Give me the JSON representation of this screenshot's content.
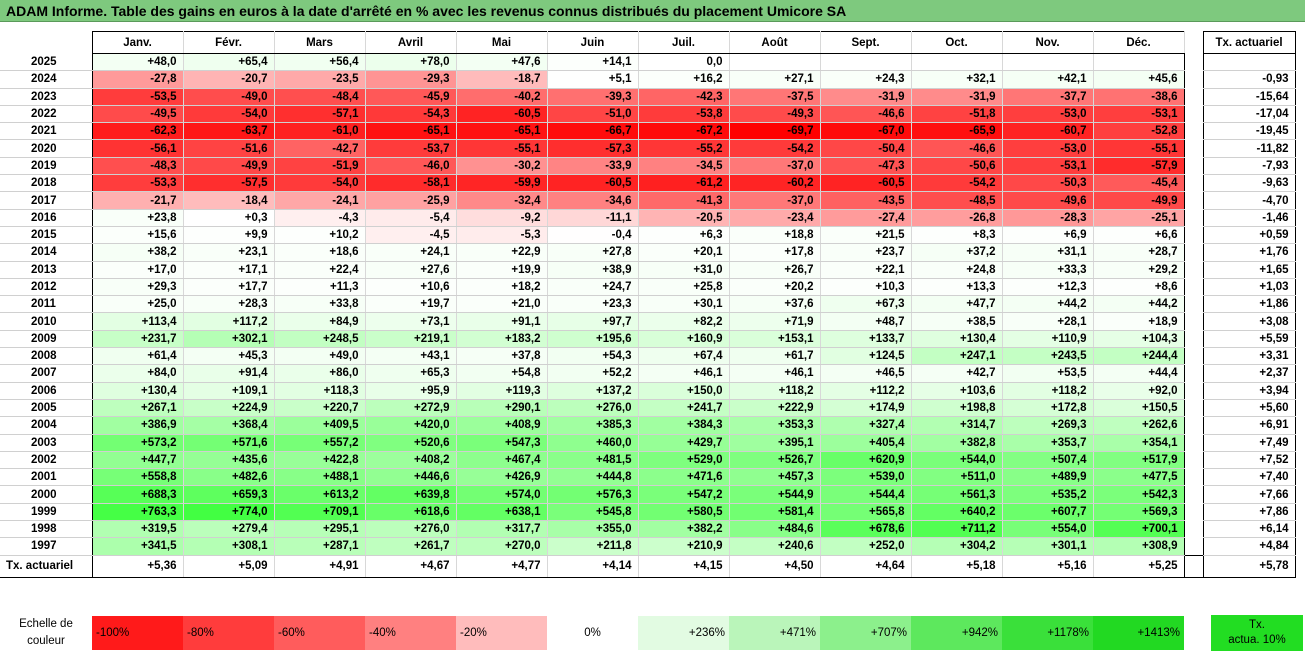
{
  "title": "ADAM Informe. Table des gains en euros à la date d'arrêté en % avec les revenus connus distribués du placement Umicore SA",
  "months": [
    "Janv.",
    "Févr.",
    "Mars",
    "Avril",
    "Mai",
    "Juin",
    "Juil.",
    "Août",
    "Sept.",
    "Oct.",
    "Nov.",
    "Déc."
  ],
  "tx_header": "Tx. actuariel",
  "rows": [
    {
      "year": "2025",
      "vals": [
        "+48,0",
        "+65,4",
        "+56,4",
        "+78,0",
        "+47,6",
        "+14,1",
        "0,0",
        "",
        "",
        "",
        "",
        ""
      ],
      "tx": ""
    },
    {
      "year": "2024",
      "vals": [
        "-27,8",
        "-20,7",
        "-23,5",
        "-29,3",
        "-18,7",
        "+5,1",
        "+16,2",
        "+27,1",
        "+24,3",
        "+32,1",
        "+42,1",
        "+45,6"
      ],
      "tx": "-0,93"
    },
    {
      "year": "2023",
      "vals": [
        "-53,5",
        "-49,0",
        "-48,4",
        "-45,9",
        "-40,2",
        "-39,3",
        "-42,3",
        "-37,5",
        "-31,9",
        "-31,9",
        "-37,7",
        "-38,6"
      ],
      "tx": "-15,64"
    },
    {
      "year": "2022",
      "vals": [
        "-49,5",
        "-54,0",
        "-57,1",
        "-54,3",
        "-60,5",
        "-51,0",
        "-53,8",
        "-49,3",
        "-46,6",
        "-51,8",
        "-53,0",
        "-53,1"
      ],
      "tx": "-17,04"
    },
    {
      "year": "2021",
      "vals": [
        "-62,3",
        "-63,7",
        "-61,0",
        "-65,1",
        "-65,1",
        "-66,7",
        "-67,2",
        "-69,7",
        "-67,0",
        "-65,9",
        "-60,7",
        "-52,8"
      ],
      "tx": "-19,45"
    },
    {
      "year": "2020",
      "vals": [
        "-56,1",
        "-51,6",
        "-42,7",
        "-53,7",
        "-55,1",
        "-57,3",
        "-55,2",
        "-54,2",
        "-50,4",
        "-46,6",
        "-53,0",
        "-55,1"
      ],
      "tx": "-11,82"
    },
    {
      "year": "2019",
      "vals": [
        "-48,3",
        "-49,9",
        "-51,9",
        "-46,0",
        "-30,2",
        "-33,9",
        "-34,5",
        "-37,0",
        "-47,3",
        "-50,6",
        "-53,1",
        "-57,9"
      ],
      "tx": "-7,93"
    },
    {
      "year": "2018",
      "vals": [
        "-53,3",
        "-57,5",
        "-54,0",
        "-58,1",
        "-59,9",
        "-60,5",
        "-61,2",
        "-60,2",
        "-60,5",
        "-54,2",
        "-50,3",
        "-45,4"
      ],
      "tx": "-9,63"
    },
    {
      "year": "2017",
      "vals": [
        "-21,7",
        "-18,4",
        "-24,1",
        "-25,9",
        "-32,4",
        "-34,6",
        "-41,3",
        "-37,0",
        "-43,5",
        "-48,5",
        "-49,6",
        "-49,9"
      ],
      "tx": "-4,70"
    },
    {
      "year": "2016",
      "vals": [
        "+23,8",
        "+0,3",
        "-4,3",
        "-5,4",
        "-9,2",
        "-11,1",
        "-20,5",
        "-23,4",
        "-27,4",
        "-26,8",
        "-28,3",
        "-25,1"
      ],
      "tx": "-1,46"
    },
    {
      "year": "2015",
      "vals": [
        "+15,6",
        "+9,9",
        "+10,2",
        "-4,5",
        "-5,3",
        "-0,4",
        "+6,3",
        "+18,8",
        "+21,5",
        "+8,3",
        "+6,9",
        "+6,6"
      ],
      "tx": "+0,59"
    },
    {
      "year": "2014",
      "vals": [
        "+38,2",
        "+23,1",
        "+18,6",
        "+24,1",
        "+22,9",
        "+27,8",
        "+20,1",
        "+17,8",
        "+23,7",
        "+37,2",
        "+31,1",
        "+28,7"
      ],
      "tx": "+1,76"
    },
    {
      "year": "2013",
      "vals": [
        "+17,0",
        "+17,1",
        "+22,4",
        "+27,6",
        "+19,9",
        "+38,9",
        "+31,0",
        "+26,7",
        "+22,1",
        "+24,8",
        "+33,3",
        "+29,2"
      ],
      "tx": "+1,65"
    },
    {
      "year": "2012",
      "vals": [
        "+29,3",
        "+17,7",
        "+11,3",
        "+10,6",
        "+18,2",
        "+24,7",
        "+25,8",
        "+20,2",
        "+10,3",
        "+13,3",
        "+12,3",
        "+8,6"
      ],
      "tx": "+1,03"
    },
    {
      "year": "2011",
      "vals": [
        "+25,0",
        "+28,3",
        "+33,8",
        "+19,7",
        "+21,0",
        "+23,3",
        "+30,1",
        "+37,6",
        "+67,3",
        "+47,7",
        "+44,2",
        "+44,2"
      ],
      "tx": "+1,86"
    },
    {
      "year": "2010",
      "vals": [
        "+113,4",
        "+117,2",
        "+84,9",
        "+73,1",
        "+91,1",
        "+97,7",
        "+82,2",
        "+71,9",
        "+48,7",
        "+38,5",
        "+28,1",
        "+18,9"
      ],
      "tx": "+3,08"
    },
    {
      "year": "2009",
      "vals": [
        "+231,7",
        "+302,1",
        "+248,5",
        "+219,1",
        "+183,2",
        "+195,6",
        "+160,9",
        "+153,1",
        "+133,7",
        "+130,4",
        "+110,9",
        "+104,3"
      ],
      "tx": "+5,59"
    },
    {
      "year": "2008",
      "vals": [
        "+61,4",
        "+45,3",
        "+49,0",
        "+43,1",
        "+37,8",
        "+54,3",
        "+67,4",
        "+61,7",
        "+124,5",
        "+247,1",
        "+243,5",
        "+244,4"
      ],
      "tx": "+3,31"
    },
    {
      "year": "2007",
      "vals": [
        "+84,0",
        "+91,4",
        "+86,0",
        "+65,3",
        "+54,8",
        "+52,2",
        "+46,1",
        "+46,1",
        "+46,5",
        "+42,7",
        "+53,5",
        "+44,4"
      ],
      "tx": "+2,37"
    },
    {
      "year": "2006",
      "vals": [
        "+130,4",
        "+109,1",
        "+118,3",
        "+95,9",
        "+119,3",
        "+137,2",
        "+150,0",
        "+118,2",
        "+112,2",
        "+103,6",
        "+118,2",
        "+92,0"
      ],
      "tx": "+3,94"
    },
    {
      "year": "2005",
      "vals": [
        "+267,1",
        "+224,9",
        "+220,7",
        "+272,9",
        "+290,1",
        "+276,0",
        "+241,7",
        "+222,9",
        "+174,9",
        "+198,8",
        "+172,8",
        "+150,5"
      ],
      "tx": "+5,60"
    },
    {
      "year": "2004",
      "vals": [
        "+386,9",
        "+368,4",
        "+409,5",
        "+420,0",
        "+408,9",
        "+385,3",
        "+384,3",
        "+353,3",
        "+327,4",
        "+314,7",
        "+269,3",
        "+262,6"
      ],
      "tx": "+6,91"
    },
    {
      "year": "2003",
      "vals": [
        "+573,2",
        "+571,6",
        "+557,2",
        "+520,6",
        "+547,3",
        "+460,0",
        "+429,7",
        "+395,1",
        "+405,4",
        "+382,8",
        "+353,7",
        "+354,1"
      ],
      "tx": "+7,49"
    },
    {
      "year": "2002",
      "vals": [
        "+447,7",
        "+435,6",
        "+422,8",
        "+408,2",
        "+467,4",
        "+481,5",
        "+529,0",
        "+526,7",
        "+620,9",
        "+544,0",
        "+507,4",
        "+517,9"
      ],
      "tx": "+7,52"
    },
    {
      "year": "2001",
      "vals": [
        "+558,8",
        "+482,6",
        "+488,1",
        "+446,6",
        "+426,9",
        "+444,8",
        "+471,6",
        "+457,3",
        "+539,0",
        "+511,0",
        "+489,9",
        "+477,5"
      ],
      "tx": "+7,40"
    },
    {
      "year": "2000",
      "vals": [
        "+688,3",
        "+659,3",
        "+613,2",
        "+639,8",
        "+574,0",
        "+576,3",
        "+547,2",
        "+544,9",
        "+544,4",
        "+561,3",
        "+535,2",
        "+542,3"
      ],
      "tx": "+7,66"
    },
    {
      "year": "1999",
      "vals": [
        "+763,3",
        "+774,0",
        "+709,1",
        "+618,6",
        "+638,1",
        "+545,8",
        "+580,5",
        "+581,4",
        "+565,8",
        "+640,2",
        "+607,7",
        "+569,3"
      ],
      "tx": "+7,86"
    },
    {
      "year": "1998",
      "vals": [
        "+319,5",
        "+279,4",
        "+295,1",
        "+276,0",
        "+317,7",
        "+355,0",
        "+382,2",
        "+484,6",
        "+678,6",
        "+711,2",
        "+554,0",
        "+700,1"
      ],
      "tx": "+6,14"
    },
    {
      "year": "1997",
      "vals": [
        "+341,5",
        "+308,1",
        "+287,1",
        "+261,7",
        "+270,0",
        "+211,8",
        "+210,9",
        "+240,6",
        "+252,0",
        "+304,2",
        "+301,1",
        "+308,9"
      ],
      "tx": "+4,84"
    }
  ],
  "footer": {
    "label": "Tx. actuariel",
    "vals": [
      "+5,36",
      "+5,09",
      "+4,91",
      "+4,67",
      "+4,77",
      "+4,14",
      "+4,15",
      "+4,50",
      "+4,64",
      "+5,18",
      "+5,16",
      "+5,25"
    ],
    "tx": "+5,78"
  },
  "scale": {
    "label_line1": "Echelle de",
    "label_line2": "couleur",
    "items": [
      {
        "text": "-100%",
        "color": "#ff1a1a",
        "align": "left"
      },
      {
        "text": "-80%",
        "color": "#ff3c3c",
        "align": "left"
      },
      {
        "text": "-60%",
        "color": "#ff5c5c",
        "align": "left"
      },
      {
        "text": "-40%",
        "color": "#ff8080",
        "align": "left"
      },
      {
        "text": "-20%",
        "color": "#ffbcbc",
        "align": "left"
      },
      {
        "text": "0%",
        "color": "#ffffff",
        "align": "center"
      },
      {
        "text": "+236%",
        "color": "#e2fbe2",
        "align": "right"
      },
      {
        "text": "+471%",
        "color": "#baf5ba",
        "align": "right"
      },
      {
        "text": "+707%",
        "color": "#8cf08c",
        "align": "right"
      },
      {
        "text": "+942%",
        "color": "#5de85d",
        "align": "right"
      },
      {
        "text": "+1178%",
        "color": "#3ae03a",
        "align": "right"
      },
      {
        "text": "+1413%",
        "color": "#22d922",
        "align": "right"
      }
    ],
    "tx_line1": "Tx.",
    "tx_line2": "actua. 10%",
    "tx_color": "#22dd22"
  }
}
